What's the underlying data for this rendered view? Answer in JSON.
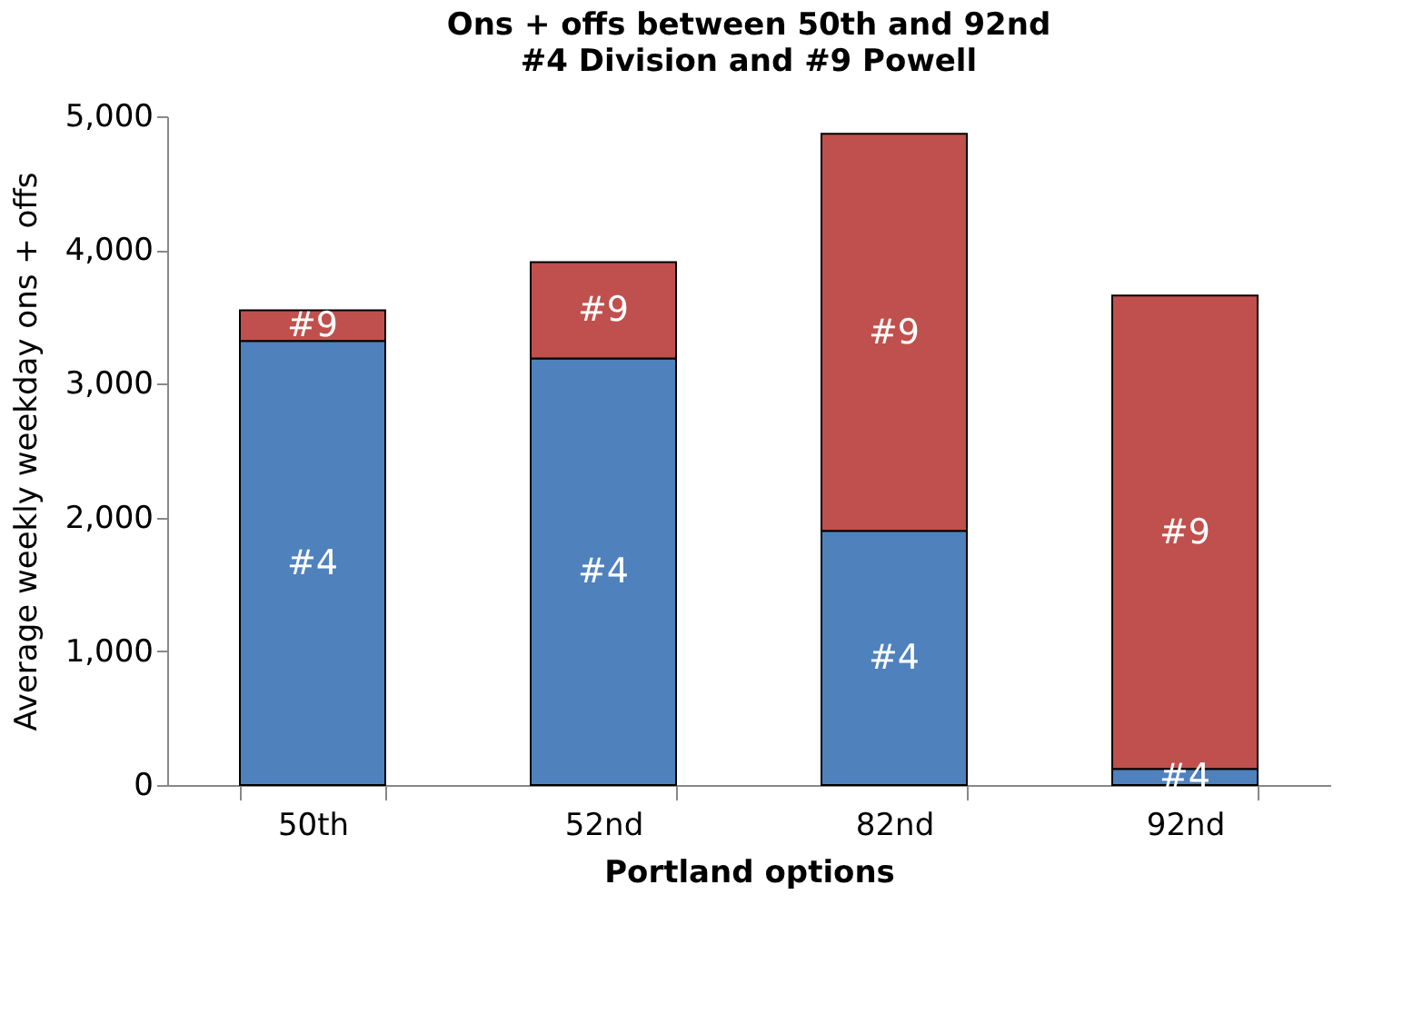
{
  "chart_data": {
    "type": "bar",
    "stacked": true,
    "title": "Ons + offs between 50th and 92nd",
    "subtitle": "#4 Division and #9 Powell",
    "xlabel": "Portland options",
    "ylabel": "Average weekly weekday ons + offs",
    "categories": [
      "50th",
      "52nd",
      "82nd",
      "92nd"
    ],
    "series": [
      {
        "name": "#4",
        "color": "#4f81bd",
        "values": [
          3320,
          3190,
          1900,
          120
        ]
      },
      {
        "name": "#9",
        "color": "#c0504d",
        "values": [
          230,
          720,
          2970,
          3540
        ]
      }
    ],
    "ylim": [
      0,
      5000
    ],
    "yticks": [
      {
        "value": 0,
        "label": "0"
      },
      {
        "value": 1000,
        "label": "1,000"
      },
      {
        "value": 2000,
        "label": "2,000"
      },
      {
        "value": 3000,
        "label": "3,000"
      },
      {
        "value": 4000,
        "label": "4,000"
      },
      {
        "value": 5000,
        "label": "5,000"
      }
    ],
    "grid": false
  }
}
